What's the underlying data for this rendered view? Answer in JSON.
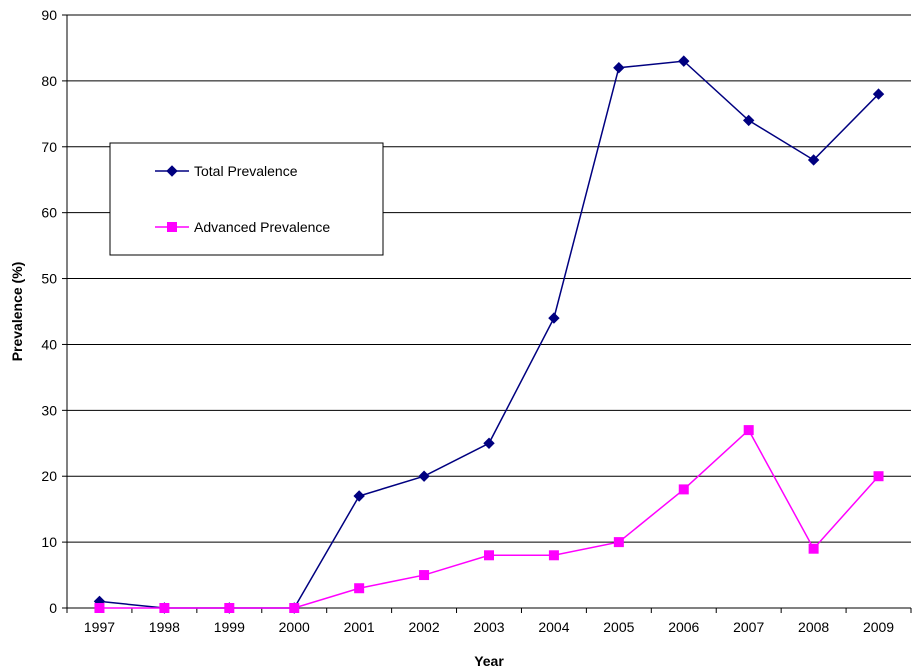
{
  "chart_data": {
    "type": "line",
    "title": "",
    "xlabel": "Year",
    "ylabel": "Prevalence (%)",
    "categories": [
      "1997",
      "1998",
      "1999",
      "2000",
      "2001",
      "2002",
      "2003",
      "2004",
      "2005",
      "2006",
      "2007",
      "2008",
      "2009"
    ],
    "ylim": [
      0,
      90
    ],
    "yticks": [
      0,
      10,
      20,
      30,
      40,
      50,
      60,
      70,
      80,
      90
    ],
    "grid": "horizontal",
    "legend_position": "upper-left inside plot",
    "series": [
      {
        "name": "Total Prevalence",
        "color": "#000080",
        "marker": "diamond",
        "values": [
          1,
          0,
          0,
          0,
          17,
          20,
          25,
          44,
          82,
          83,
          74,
          68,
          78
        ]
      },
      {
        "name": "Advanced Prevalence",
        "color": "#FF00FF",
        "marker": "square",
        "values": [
          0,
          0,
          0,
          0,
          3,
          5,
          8,
          8,
          10,
          18,
          27,
          9,
          20
        ]
      }
    ]
  }
}
